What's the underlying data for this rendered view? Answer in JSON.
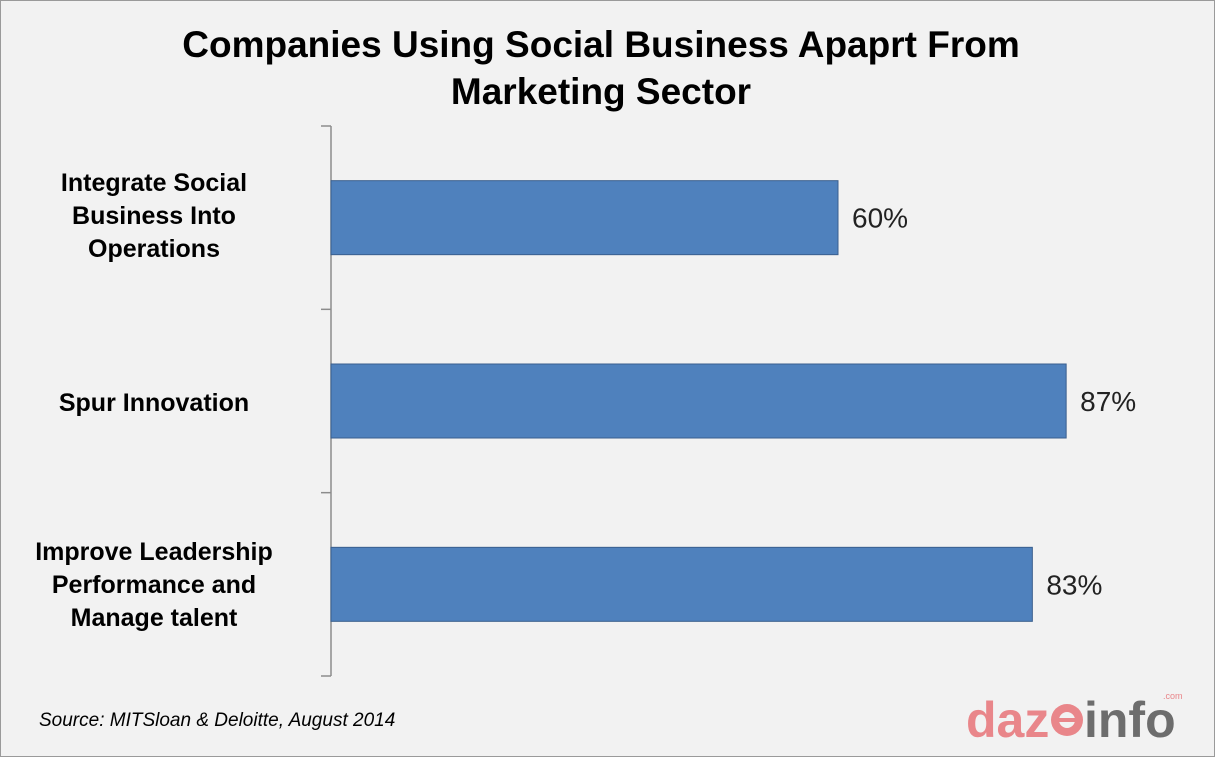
{
  "chart_data": {
    "type": "bar",
    "orientation": "horizontal",
    "title": "Companies Using Social Business Apaprt From Marketing Sector",
    "categories": [
      "Integrate Social Business Into Operations",
      "Spur Innovation",
      "Improve Leadership Performance and Manage talent"
    ],
    "values": [
      60,
      87,
      83
    ],
    "data_labels": [
      "60%",
      "87%",
      "83%"
    ],
    "xlim": [
      0,
      100
    ],
    "grid": false,
    "colors": {
      "bar": "#4f81bd",
      "bar_border": "#3a5f8e",
      "axis": "#8c8c8c"
    }
  },
  "source": "Source: MITSloan & Deloitte, August 2014",
  "logo": {
    "text_pink": "daz",
    "text_gray": "info",
    "suffix": ".com",
    "colors": {
      "pink": "#e9868a",
      "gray": "#6d6d6d"
    }
  }
}
